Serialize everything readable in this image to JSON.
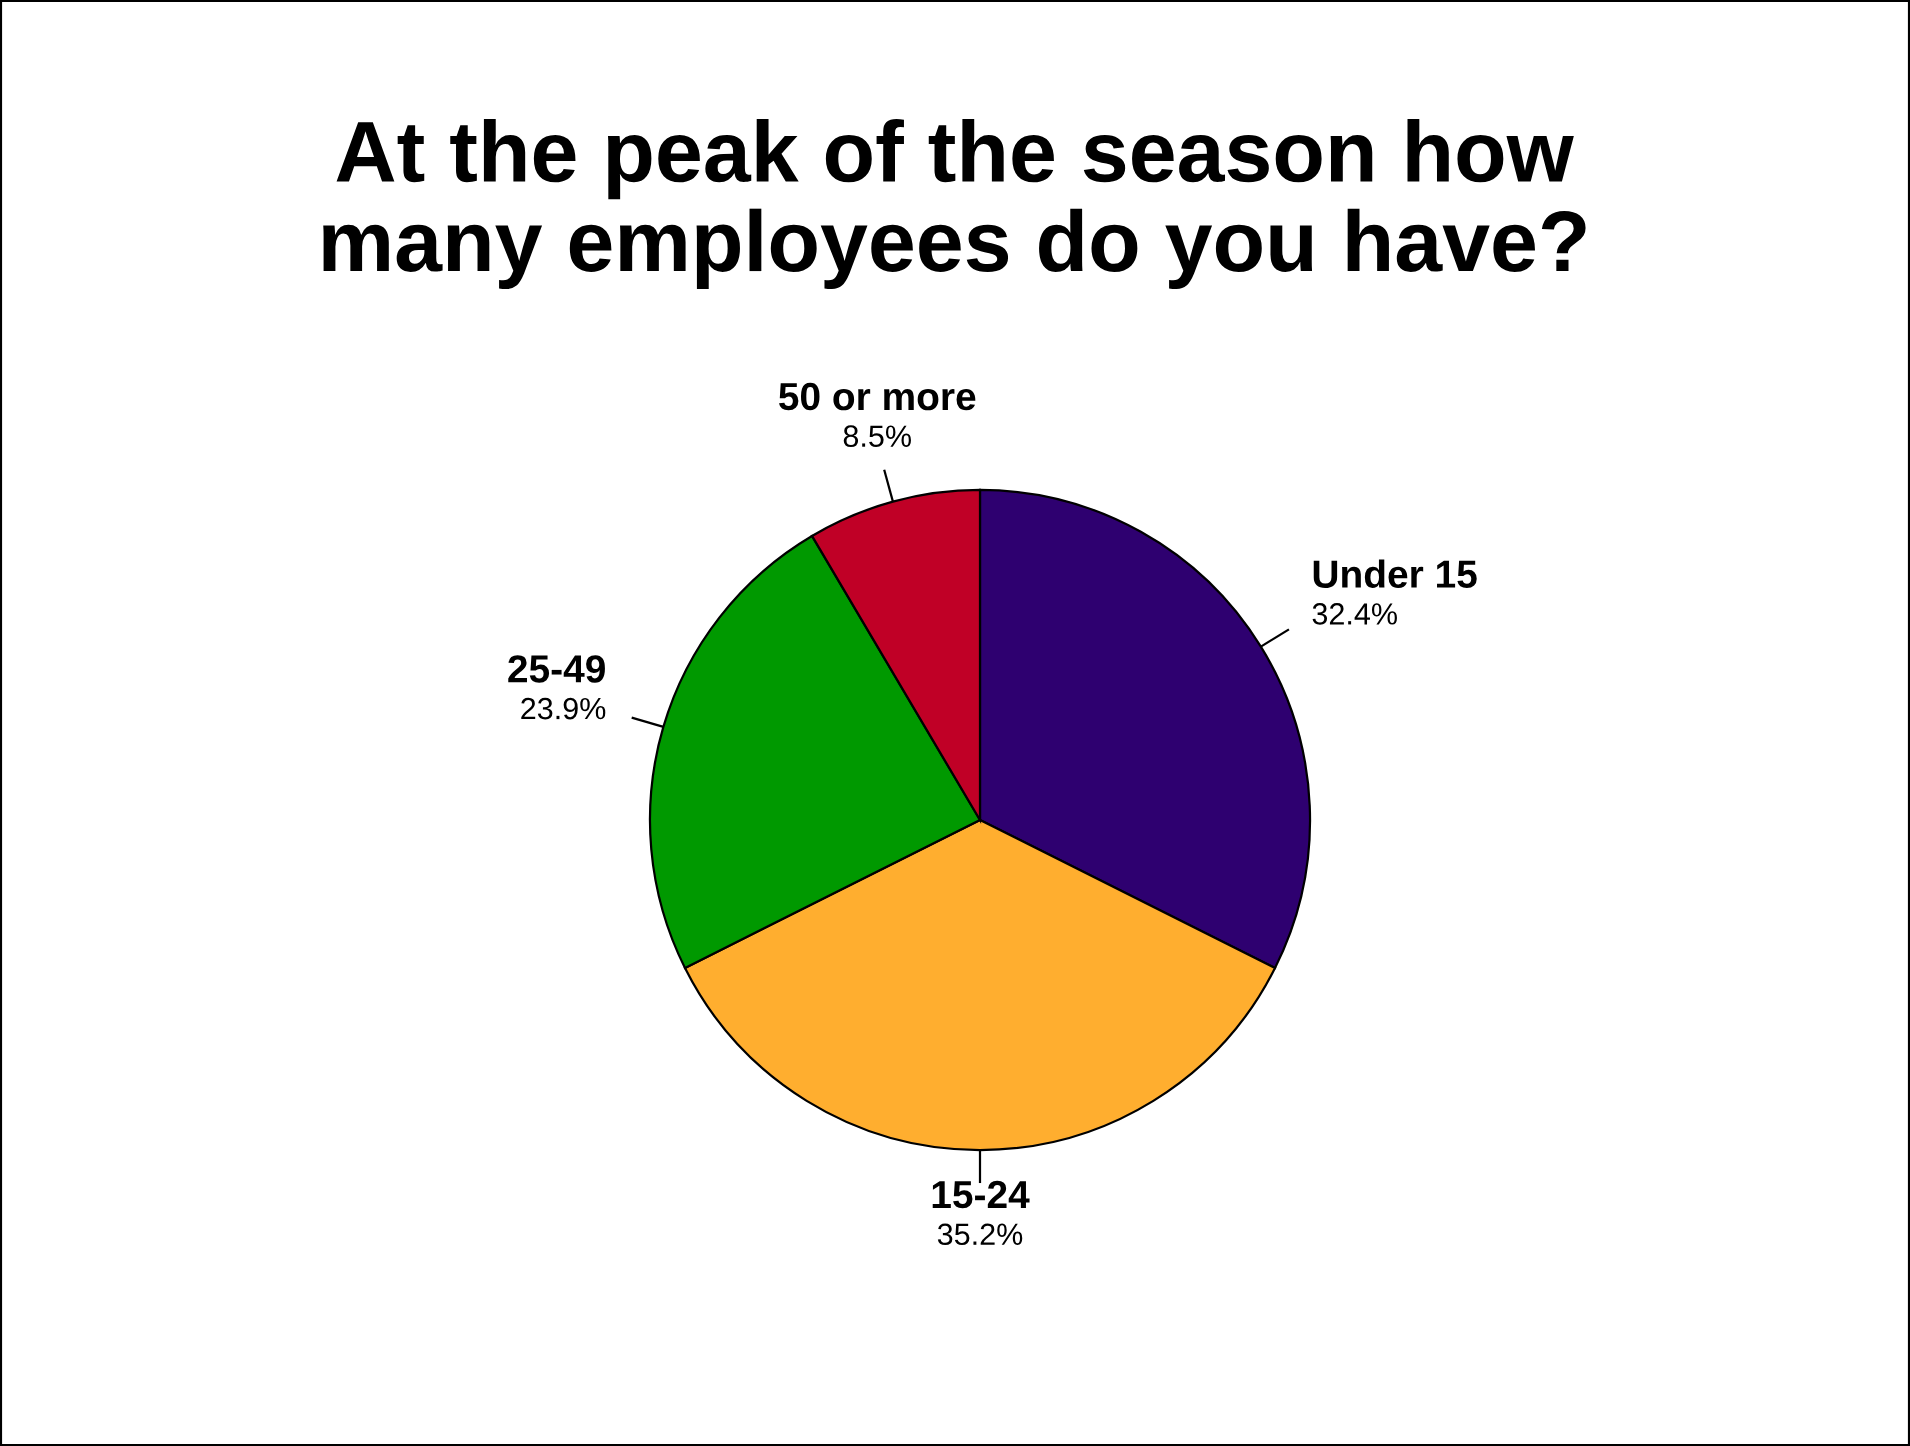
{
  "chart_data": {
    "type": "pie",
    "title": "At the peak of the season how\nmany employees do you have?",
    "categories": [
      "Under 15",
      "15-24",
      "25-49",
      "50 or more"
    ],
    "values": [
      32.4,
      35.2,
      23.9,
      8.5
    ],
    "value_labels": [
      "32.4%",
      "35.2%",
      "23.9%",
      "8.5%"
    ],
    "colors": [
      "#2e0070",
      "#ffae2f",
      "#009900",
      "#c00026"
    ],
    "legend": false
  }
}
